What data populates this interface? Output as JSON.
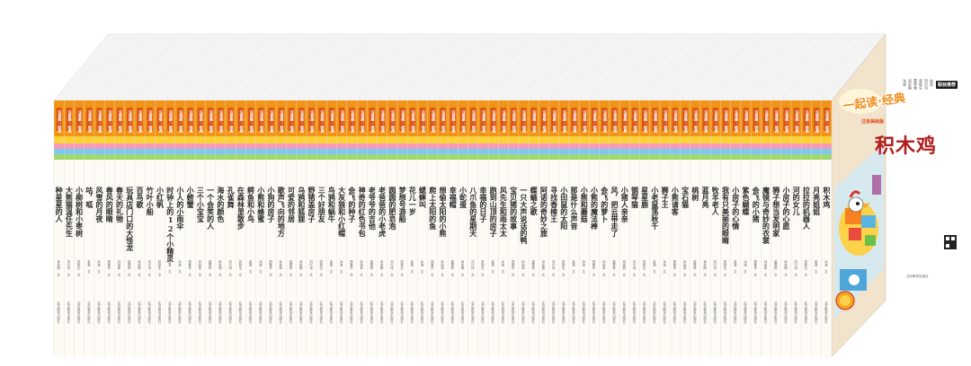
{
  "series_tag": "注音版·经典",
  "front_cover": {
    "logo": "一起读·经典",
    "logo_sub": "注音美绘版",
    "title": "积木鸡",
    "authors": [
      "金波",
      "刘兴诗",
      "张秋生",
      "葛翠林",
      "肖定丽",
      "冰波"
    ],
    "badge": "联袂推荐",
    "publisher": "北京教育出版社"
  },
  "spines": [
    "积木鸡",
    "月亮姐姐",
    "拉拉的机器人",
    "河的女儿",
    "小房子的心愿",
    "狮子想当发明家",
    "魔镜与奇妙的衣裳",
    "会飞的小猪",
    "紫色蝴蝶",
    "小房子的心情",
    "我有只美丽的眼睛",
    "牧羊老人",
    "蓝月亮",
    "桃树",
    "宝石猫",
    "小熊请客",
    "狮子王",
    "小老鼠荡秋千",
    "星星鹿",
    "钢琴猫",
    "小猪人亲亲",
    "风，把云带走了",
    "会飞的萝卜",
    "小熊的魔法棒",
    "小熊和蘑菇",
    "那是什么声音",
    "小田鼠的太阳",
    "寻找香樟王",
    "阿诺的奇妙之旅",
    "蝶蛹之歌",
    "一只大声说话的鸭",
    "宝贝猪的故事",
    "风先生和雨太太",
    "跑到山顶的房子",
    "幸福的日子",
    "八爪鱼的星期天",
    "小蛇蛋",
    "幸福帽",
    "想偷太阳的小熊",
    "爬上太阳的鱼",
    "蟋蟀叫",
    "花儿一岁",
    "梦想号游船",
    "圆圆的肥皂泡",
    "老爸爸的小老虎",
    "老爷爷的吉他",
    "神奇的红色书包",
    "会飞的种子",
    "大灰狼和小红帽",
    "鸟鸦和蜗牛",
    "三个好朋友",
    "野猪盖房子",
    "乌鸦和狐狸",
    "可爱的邻居",
    "歌声飞向的地方",
    "小狗的房子",
    "小熊和蜂蜜",
    "鳄鱼和小鸟",
    "在森林里散步",
    "孔雀舞",
    "海水的颜色",
    "一个会笑的人",
    "三个小宝宝",
    "小螃蟹",
    "小人的小雨伞",
    "时钟上的12个小精灵",
    "小红帆",
    "竹叶小船",
    "百鸟歌",
    "玩具店门口的大怪龙",
    "春天的礼物",
    "春风的眼睛",
    "风雪的月夜",
    "咕，呱",
    "小柳树和小枣树",
    "大熊猫温任先生",
    "种星星的人"
  ],
  "spine_authors": [
    "冰波 文",
    "金波 文",
    "张秋生 文",
    "刘兴诗 文",
    "肖定丽 文",
    "葛翠林 文",
    "孙幼军 文",
    "郑春华 文"
  ],
  "spine_publisher": "北京教育出版社"
}
